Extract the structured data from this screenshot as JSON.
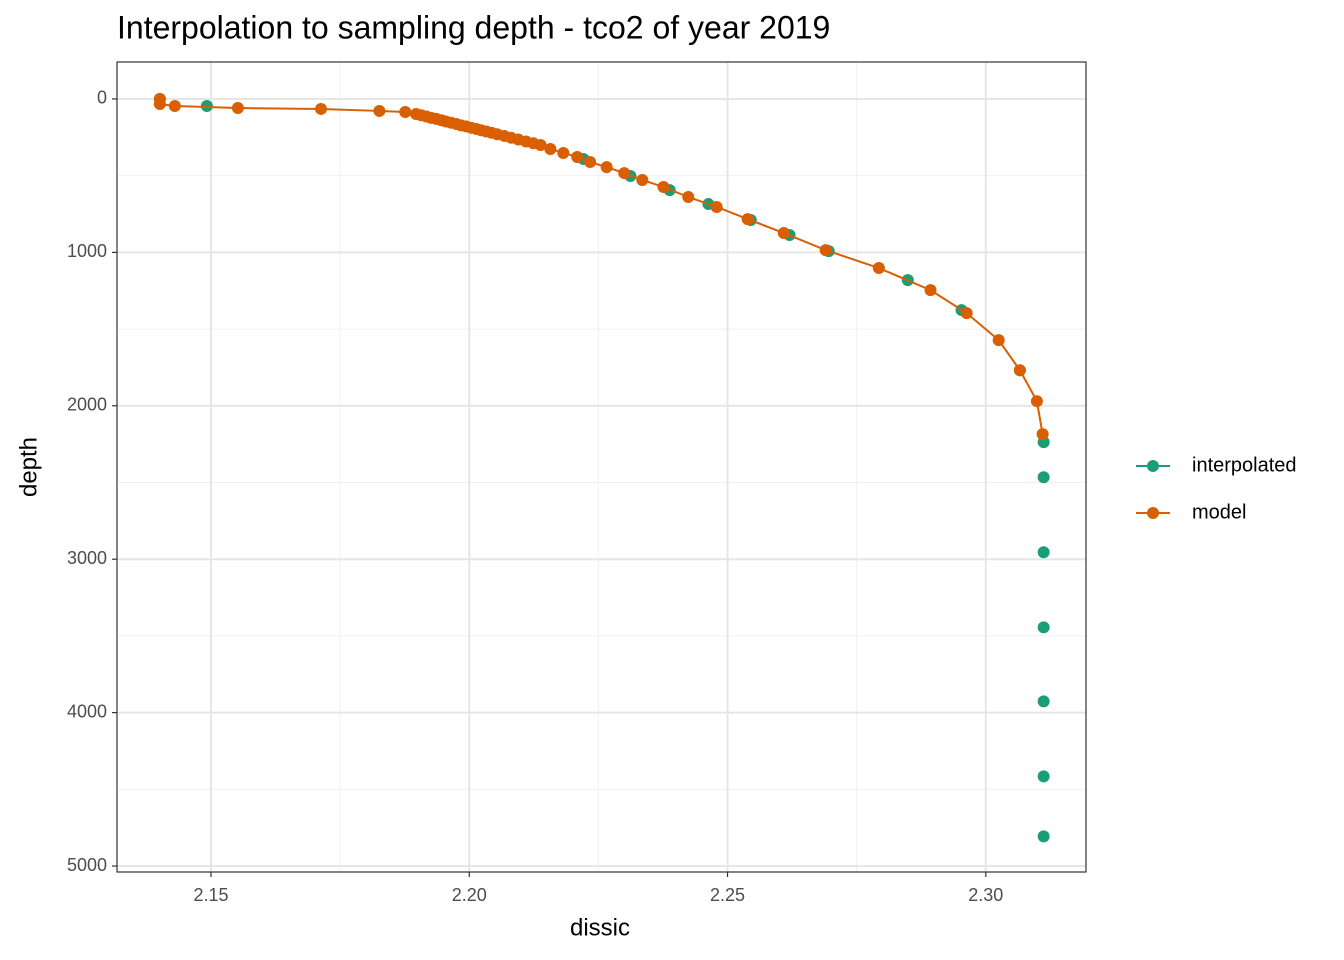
{
  "chart_data": {
    "type": "line",
    "title": "Interpolation to sampling depth - tco2 of year 2019",
    "x_label": "dissic",
    "y_label": "depth",
    "xlim": [
      2.1318,
      2.3194
    ],
    "ylim": [
      -241,
      5039
    ],
    "y_reversed": true,
    "xticks": [
      2.15,
      {
        "value": 2.2,
        "label": "2.20"
      },
      2.25,
      {
        "value": 2.3,
        "label": "2.30"
      }
    ],
    "yticks": [
      0,
      1000,
      2000,
      3000,
      4000,
      5000
    ],
    "grid": true,
    "minor_grid": true,
    "legend": "right",
    "series": [
      {
        "name": "interpolated",
        "color": "#1b9e77",
        "mode": "markers",
        "x": [
          2.1401,
          2.1492,
          2.2221,
          2.2312,
          2.2388,
          2.2463,
          2.2545,
          2.262,
          2.2696,
          2.2849,
          2.2953,
          2.3066,
          2.3112,
          2.3112,
          2.3112,
          2.3112,
          2.3112,
          2.3112,
          2.3112
        ],
        "values": [
          0,
          46,
          391,
          502,
          594,
          685,
          789,
          887,
          992,
          1181,
          1376,
          1768,
          2237,
          2466,
          2955,
          3444,
          3927,
          4416,
          4807
        ]
      },
      {
        "name": "model",
        "color": "#d95f02",
        "mode": "lines+markers",
        "x": [
          2.1401,
          2.1401,
          2.143,
          2.1552,
          2.1713,
          2.1826,
          2.1876,
          2.1897,
          2.1907,
          2.1917,
          2.1926,
          2.1936,
          2.1946,
          2.1955,
          2.1965,
          2.1975,
          2.1984,
          2.1994,
          2.2004,
          2.2014,
          2.2023,
          2.2033,
          2.2043,
          2.2054,
          2.2068,
          2.2081,
          2.2095,
          2.211,
          2.2124,
          2.2138,
          2.2157,
          2.2182,
          2.2209,
          2.2234,
          2.2266,
          2.23,
          2.2335,
          2.2376,
          2.2424,
          2.2479,
          2.2539,
          2.2609,
          2.269,
          2.2793,
          2.2893,
          2.2963,
          2.3025,
          2.3066,
          2.3099,
          2.311
        ],
        "values": [
          0,
          33,
          46,
          59,
          65,
          78,
          85,
          98,
          106,
          114,
          123,
          130,
          139,
          147,
          155,
          163,
          172,
          179,
          188,
          196,
          204,
          212,
          220,
          230,
          241,
          253,
          264,
          277,
          289,
          300,
          326,
          352,
          378,
          411,
          444,
          483,
          528,
          574,
          639,
          704,
          783,
          874,
          985,
          1102,
          1246,
          1396,
          1572,
          1768,
          1970,
          2185
        ]
      }
    ]
  }
}
